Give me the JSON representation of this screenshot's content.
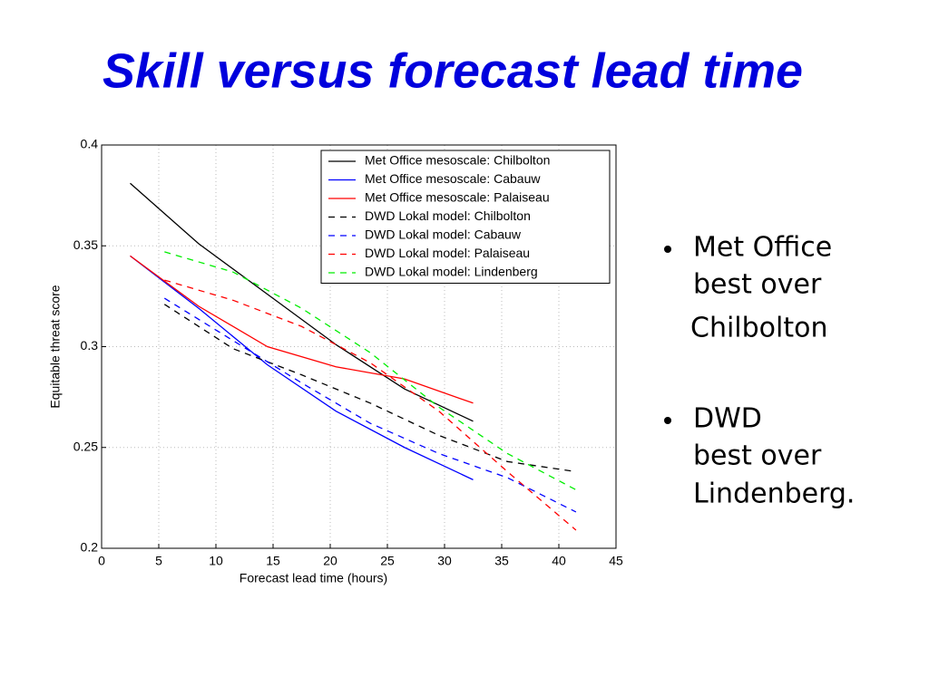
{
  "slide": {
    "title": "Skill versus forecast lead time",
    "bullets": [
      [
        "Met Office",
        "best over",
        "Chilbolton"
      ],
      [
        "DWD",
        "best over",
        "Lindenberg."
      ]
    ]
  },
  "chart_data": {
    "type": "line",
    "xlabel": "Forecast lead time (hours)",
    "ylabel": "Equitable threat score",
    "xlim": [
      0,
      45
    ],
    "xticks": [
      0,
      5,
      10,
      15,
      20,
      25,
      30,
      35,
      40,
      45
    ],
    "ylim": [
      0.2,
      0.4
    ],
    "yticks": [
      0.2,
      0.25,
      0.3,
      0.35,
      0.4
    ],
    "grid": true,
    "legend": "upper right",
    "series": [
      {
        "name": "Met Office mesoscale: Chilbolton",
        "color": "#000000",
        "dashed": false,
        "x": [
          2.5,
          8.5,
          14.5,
          20.5,
          26.5,
          32.5
        ],
        "values": [
          0.381,
          0.351,
          0.326,
          0.301,
          0.279,
          0.263
        ]
      },
      {
        "name": "Met Office mesoscale: Cabauw",
        "color": "#0000ff",
        "dashed": false,
        "x": [
          2.5,
          8.5,
          14.5,
          20.5,
          26.5,
          32.5
        ],
        "values": [
          0.345,
          0.319,
          0.291,
          0.268,
          0.25,
          0.234
        ]
      },
      {
        "name": "Met Office mesoscale: Palaiseau",
        "color": "#ff0000",
        "dashed": false,
        "x": [
          2.5,
          8.5,
          14.5,
          20.5,
          26.5,
          32.5
        ],
        "values": [
          0.345,
          0.32,
          0.3,
          0.29,
          0.284,
          0.272
        ]
      },
      {
        "name": "DWD Lokal model: Chilbolton",
        "color": "#000000",
        "dashed": true,
        "x": [
          5.5,
          11.5,
          17.5,
          23.5,
          29.5,
          35.5,
          41.5
        ],
        "values": [
          0.321,
          0.299,
          0.286,
          0.272,
          0.256,
          0.243,
          0.238
        ]
      },
      {
        "name": "DWD Lokal model: Cabauw",
        "color": "#0000ff",
        "dashed": true,
        "x": [
          5.5,
          11.5,
          17.5,
          23.5,
          29.5,
          35.5,
          41.5
        ],
        "values": [
          0.324,
          0.303,
          0.282,
          0.262,
          0.247,
          0.235,
          0.218
        ]
      },
      {
        "name": "DWD Lokal model: Palaiseau",
        "color": "#ff0000",
        "dashed": true,
        "x": [
          5.5,
          11.5,
          17.5,
          23.5,
          29.5,
          35.5,
          41.5
        ],
        "values": [
          0.333,
          0.323,
          0.31,
          0.292,
          0.268,
          0.238,
          0.209
        ]
      },
      {
        "name": "DWD Lokal model: Lindenberg",
        "color": "#00ee00",
        "dashed": true,
        "x": [
          5.5,
          11.5,
          17.5,
          23.5,
          29.5,
          35.5,
          41.5
        ],
        "values": [
          0.347,
          0.337,
          0.319,
          0.297,
          0.27,
          0.247,
          0.229
        ]
      }
    ]
  }
}
